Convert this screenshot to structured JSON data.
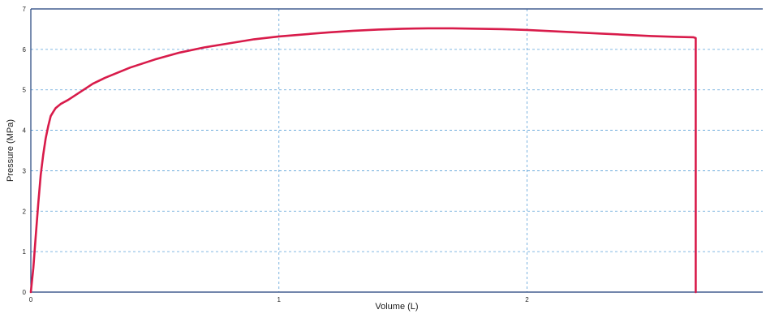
{
  "chart_data": {
    "type": "line",
    "title": "",
    "xlabel": "Volume (L)",
    "ylabel": "Pressure (MPa)",
    "xlim": [
      0,
      2.95
    ],
    "ylim": [
      0,
      7
    ],
    "x_ticks": [
      "0",
      "1",
      "2"
    ],
    "y_ticks": [
      "0",
      "1",
      "2",
      "3",
      "4",
      "5",
      "6",
      "7"
    ],
    "grid": true,
    "legend": "none",
    "colors": {
      "line": "#d81b4a",
      "grid": "#5aa0d8",
      "axis": "#1f3f7a"
    },
    "series": [
      {
        "x": [
          0.0,
          0.01,
          0.02,
          0.03,
          0.04,
          0.05,
          0.06,
          0.07,
          0.08,
          0.09,
          0.1,
          0.11,
          0.12,
          0.15,
          0.2,
          0.25,
          0.3,
          0.4,
          0.5,
          0.6,
          0.7,
          0.8,
          0.9,
          1.0,
          1.1,
          1.2,
          1.3,
          1.4,
          1.5,
          1.6,
          1.7,
          1.8,
          1.9,
          2.0,
          2.1,
          2.2,
          2.3,
          2.4,
          2.5,
          2.6,
          2.67,
          2.68,
          2.68
        ],
        "y": [
          0.0,
          0.6,
          1.4,
          2.2,
          2.9,
          3.4,
          3.8,
          4.1,
          4.35,
          4.45,
          4.55,
          4.6,
          4.65,
          4.75,
          4.95,
          5.15,
          5.3,
          5.55,
          5.75,
          5.92,
          6.05,
          6.15,
          6.25,
          6.32,
          6.37,
          6.42,
          6.46,
          6.49,
          6.51,
          6.52,
          6.52,
          6.51,
          6.5,
          6.48,
          6.45,
          6.42,
          6.39,
          6.36,
          6.33,
          6.31,
          6.3,
          6.28,
          0.0
        ]
      }
    ]
  }
}
